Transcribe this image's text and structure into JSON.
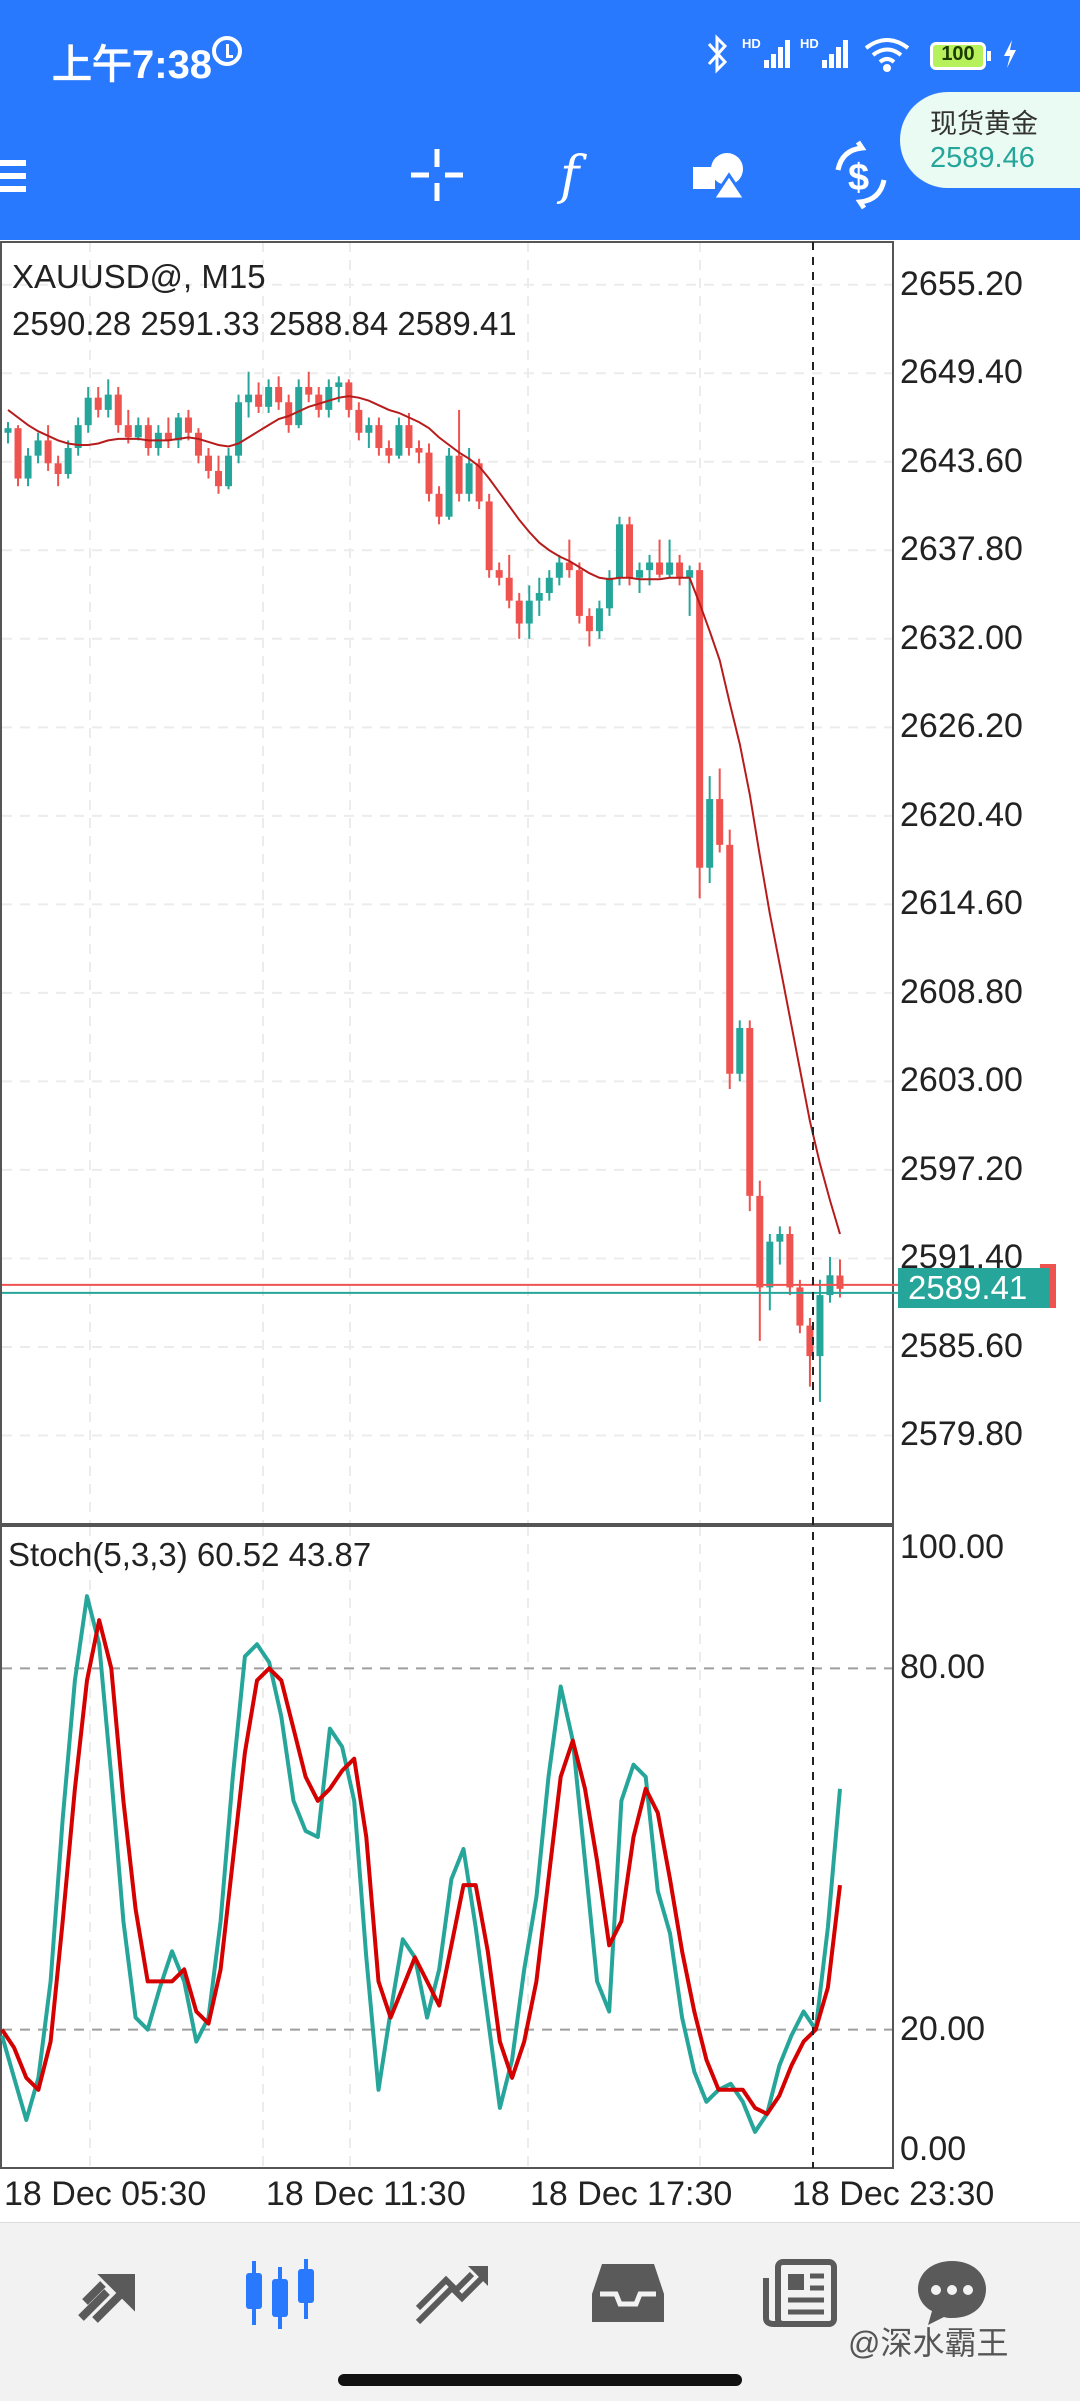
{
  "status_bar": {
    "time": "上午7:38",
    "battery": "100"
  },
  "toolbar": {
    "icons": [
      "menu-icon",
      "crosshair-icon",
      "indicators-icon",
      "objects-icon",
      "symbol-icon"
    ],
    "quote": {
      "name": "现货黄金",
      "price": "2589.46"
    }
  },
  "chart": {
    "symbol_timeframe": "XAUUSD@, M15",
    "ohlc": "2590.28 2591.33 2588.84 2589.41",
    "current_price": "2589.41",
    "colors": {
      "bull": "#26a69a",
      "bear": "#ef5350",
      "ma": "#b71c1c",
      "stoch_main": "#26a69a",
      "stoch_signal": "#d50000"
    }
  },
  "chart_data": [
    {
      "type": "candlestick",
      "title": "XAUUSD@, M15",
      "ylim": [
        2574.0,
        2658.0
      ],
      "y_ticks": [
        "2655.20",
        "2649.40",
        "2643.60",
        "2637.80",
        "2632.00",
        "2626.20",
        "2620.40",
        "2614.60",
        "2608.80",
        "2603.00",
        "2597.20",
        "2591.40",
        "2585.60",
        "2579.80"
      ],
      "x_ticks": [
        "18 Dec 05:30",
        "18 Dec 11:30",
        "18 Dec 17:30",
        "18 Dec 23:30"
      ],
      "candles": [
        [
          2645.5,
          2646.2,
          2644.8,
          2645.8
        ],
        [
          2645.8,
          2646.0,
          2642.0,
          2642.5
        ],
        [
          2642.5,
          2644.5,
          2642.0,
          2644.0
        ],
        [
          2644.0,
          2645.5,
          2643.5,
          2645.0
        ],
        [
          2645.0,
          2646.0,
          2643.0,
          2643.5
        ],
        [
          2643.5,
          2644.0,
          2642.0,
          2642.8
        ],
        [
          2642.8,
          2645.0,
          2642.5,
          2644.5
        ],
        [
          2644.5,
          2646.5,
          2644.0,
          2646.0
        ],
        [
          2646.0,
          2648.5,
          2645.5,
          2647.8
        ],
        [
          2647.8,
          2648.5,
          2646.5,
          2647.0
        ],
        [
          2647.0,
          2649.0,
          2646.5,
          2648.0
        ],
        [
          2648.0,
          2648.5,
          2645.5,
          2646.0
        ],
        [
          2646.0,
          2647.0,
          2644.8,
          2645.2
        ],
        [
          2645.2,
          2646.5,
          2645.0,
          2646.0
        ],
        [
          2646.0,
          2646.5,
          2644.0,
          2644.5
        ],
        [
          2644.5,
          2646.0,
          2644.0,
          2645.5
        ],
        [
          2645.5,
          2646.5,
          2644.5,
          2645.0
        ],
        [
          2645.0,
          2646.8,
          2644.5,
          2646.5
        ],
        [
          2646.5,
          2647.0,
          2645.0,
          2645.5
        ],
        [
          2645.5,
          2645.8,
          2643.5,
          2644.0
        ],
        [
          2644.0,
          2644.5,
          2642.5,
          2643.0
        ],
        [
          2643.0,
          2644.0,
          2641.5,
          2642.0
        ],
        [
          2642.0,
          2644.5,
          2641.8,
          2644.0
        ],
        [
          2644.0,
          2648.0,
          2643.5,
          2647.5
        ],
        [
          2647.5,
          2649.5,
          2646.5,
          2648.0
        ],
        [
          2648.0,
          2648.8,
          2646.8,
          2647.2
        ],
        [
          2647.2,
          2649.0,
          2646.8,
          2648.5
        ],
        [
          2648.5,
          2649.2,
          2647.0,
          2647.5
        ],
        [
          2647.5,
          2648.0,
          2645.5,
          2646.0
        ],
        [
          2646.0,
          2649.0,
          2645.8,
          2648.5
        ],
        [
          2648.5,
          2649.5,
          2647.5,
          2648.0
        ],
        [
          2648.0,
          2648.5,
          2646.5,
          2647.0
        ],
        [
          2647.0,
          2649.0,
          2646.5,
          2648.5
        ],
        [
          2648.5,
          2649.2,
          2647.5,
          2648.8
        ],
        [
          2648.8,
          2649.0,
          2646.5,
          2647.0
        ],
        [
          2647.0,
          2647.5,
          2645.0,
          2645.5
        ],
        [
          2645.5,
          2646.5,
          2644.5,
          2646.0
        ],
        [
          2646.0,
          2646.5,
          2644.0,
          2644.5
        ],
        [
          2644.5,
          2645.0,
          2643.5,
          2644.0
        ],
        [
          2644.0,
          2646.5,
          2643.8,
          2646.0
        ],
        [
          2646.0,
          2646.8,
          2644.0,
          2644.5
        ],
        [
          2644.5,
          2645.0,
          2643.5,
          2644.2
        ],
        [
          2644.2,
          2644.8,
          2641.0,
          2641.5
        ],
        [
          2641.5,
          2642.0,
          2639.5,
          2640.0
        ],
        [
          2640.0,
          2644.5,
          2639.8,
          2644.0
        ],
        [
          2644.0,
          2647.0,
          2641.0,
          2641.5
        ],
        [
          2641.5,
          2644.5,
          2641.0,
          2643.5
        ],
        [
          2643.5,
          2643.8,
          2640.5,
          2641.0
        ],
        [
          2641.0,
          2641.5,
          2636.0,
          2636.5
        ],
        [
          2636.5,
          2637.0,
          2635.5,
          2636.0
        ],
        [
          2636.0,
          2637.5,
          2634.0,
          2634.5
        ],
        [
          2634.5,
          2635.0,
          2632.0,
          2633.0
        ],
        [
          2633.0,
          2635.5,
          2632.0,
          2634.5
        ],
        [
          2634.5,
          2636.0,
          2633.5,
          2635.0
        ],
        [
          2635.0,
          2636.5,
          2634.5,
          2636.0
        ],
        [
          2636.0,
          2637.5,
          2635.5,
          2637.0
        ],
        [
          2637.0,
          2638.5,
          2636.0,
          2636.5
        ],
        [
          2636.5,
          2637.0,
          2633.0,
          2633.5
        ],
        [
          2633.5,
          2634.0,
          2631.5,
          2632.5
        ],
        [
          2632.5,
          2634.5,
          2632.0,
          2634.0
        ],
        [
          2634.0,
          2636.5,
          2633.5,
          2636.0
        ],
        [
          2636.0,
          2640.0,
          2635.5,
          2639.5
        ],
        [
          2639.5,
          2640.0,
          2635.5,
          2636.0
        ],
        [
          2636.0,
          2637.0,
          2635.0,
          2636.5
        ],
        [
          2636.5,
          2637.5,
          2635.5,
          2637.0
        ],
        [
          2637.0,
          2638.5,
          2636.0,
          2636.2
        ],
        [
          2636.2,
          2638.5,
          2636.0,
          2637.0
        ],
        [
          2637.0,
          2637.5,
          2635.5,
          2636.0
        ],
        [
          2636.0,
          2636.8,
          2633.5,
          2636.5
        ],
        [
          2636.5,
          2637.0,
          2615.0,
          2617.0
        ],
        [
          2617.0,
          2623.0,
          2616.0,
          2621.5
        ],
        [
          2621.5,
          2623.5,
          2618.0,
          2618.5
        ],
        [
          2618.5,
          2619.5,
          2602.5,
          2603.5
        ],
        [
          2603.5,
          2607.0,
          2603.0,
          2606.5
        ],
        [
          2606.5,
          2607.0,
          2594.5,
          2595.5
        ],
        [
          2595.5,
          2596.5,
          2586.0,
          2589.5
        ],
        [
          2589.5,
          2593.0,
          2588.0,
          2592.5
        ],
        [
          2592.5,
          2593.5,
          2591.0,
          2593.0
        ],
        [
          2593.0,
          2593.5,
          2589.0,
          2589.5
        ],
        [
          2589.5,
          2590.0,
          2586.5,
          2587.0
        ],
        [
          2587.0,
          2587.5,
          2583.0,
          2585.0
        ],
        [
          2585.0,
          2590.0,
          2582.0,
          2589.0
        ],
        [
          2589.0,
          2591.5,
          2588.5,
          2590.3
        ],
        [
          2590.28,
          2591.33,
          2588.84,
          2589.41
        ]
      ],
      "moving_average": [
        2647.0,
        2646.5,
        2646.0,
        2645.6,
        2645.3,
        2645.0,
        2644.8,
        2644.7,
        2644.7,
        2644.8,
        2645.0,
        2645.1,
        2645.1,
        2645.1,
        2645.0,
        2645.0,
        2645.0,
        2645.1,
        2645.2,
        2645.1,
        2644.9,
        2644.7,
        2644.6,
        2644.8,
        2645.2,
        2645.6,
        2646.0,
        2646.4,
        2646.6,
        2646.9,
        2647.2,
        2647.4,
        2647.6,
        2647.8,
        2647.9,
        2647.8,
        2647.6,
        2647.3,
        2647.0,
        2646.8,
        2646.5,
        2646.2,
        2645.8,
        2645.2,
        2644.7,
        2644.2,
        2643.8,
        2643.3,
        2642.5,
        2641.6,
        2640.7,
        2639.8,
        2639.0,
        2638.3,
        2637.8,
        2637.4,
        2637.1,
        2636.7,
        2636.3,
        2636.0,
        2635.9,
        2636.0,
        2636.0,
        2635.9,
        2635.9,
        2635.9,
        2636.0,
        2636.0,
        2636.0,
        2634.3,
        2632.5,
        2630.6,
        2627.8,
        2625.1,
        2621.8,
        2617.8,
        2614.0,
        2610.6,
        2607.2,
        2603.8,
        2600.4,
        2597.6,
        2595.2,
        2593.0
      ],
      "current_price": 2589.41
    },
    {
      "type": "line",
      "title": "Stoch(5,3,3) 60.52 43.87",
      "ylim": [
        0,
        100
      ],
      "y_ticks": [
        "100.00",
        "80.00",
        "20.00",
        "0.00"
      ],
      "levels": [
        80,
        20
      ],
      "series": [
        {
          "values": [
            19,
            12,
            5,
            12,
            28,
            55,
            78,
            92,
            84,
            62,
            38,
            22,
            20,
            27,
            33,
            28,
            18,
            22,
            38,
            62,
            82,
            84,
            81,
            72,
            58,
            53,
            52,
            70,
            67,
            58,
            32,
            10,
            23,
            35,
            32,
            22,
            30,
            45,
            50,
            37,
            22,
            7,
            15,
            30,
            42,
            62,
            77,
            68,
            48,
            28,
            23,
            58,
            64,
            62,
            43,
            36,
            22,
            13,
            8,
            10,
            11,
            8,
            3,
            6,
            14,
            19,
            23,
            20,
            37,
            60
          ],
          "name": ""
        },
        {
          "values": [
            20,
            17,
            12,
            10,
            18,
            38,
            60,
            78,
            88,
            80,
            58,
            40,
            28,
            28,
            28,
            30,
            23,
            21,
            30,
            48,
            66,
            78,
            80,
            78,
            70,
            62,
            58,
            60,
            63,
            65,
            52,
            28,
            22,
            27,
            32,
            28,
            24,
            34,
            44,
            44,
            33,
            18,
            12,
            18,
            28,
            45,
            62,
            68,
            60,
            48,
            34,
            38,
            52,
            60,
            56,
            45,
            33,
            23,
            15,
            10,
            10,
            10,
            7,
            6,
            9,
            14,
            18,
            20,
            27,
            44
          ],
          "name": ""
        }
      ]
    }
  ],
  "bottom_nav": {
    "items": [
      "quotes-icon",
      "chart-icon",
      "trade-icon",
      "history-icon",
      "news-icon",
      "chat-icon"
    ]
  },
  "watermark": "@深水霸王"
}
